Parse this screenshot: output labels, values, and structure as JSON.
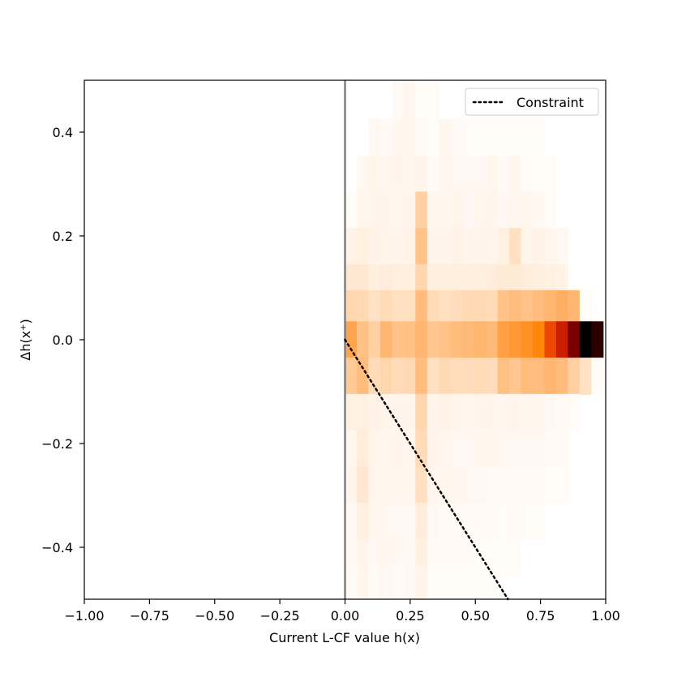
{
  "chart_data": {
    "type": "heatmap",
    "xlabel": "Current L-CF value h(x)",
    "ylabel": "Δh(x⁺)",
    "xlim": [
      -1.0,
      1.0
    ],
    "ylim": [
      -0.5,
      0.5
    ],
    "x_ticks": [
      "−1.00",
      "−0.75",
      "−0.50",
      "−0.25",
      "0.00",
      "0.25",
      "0.50",
      "0.75",
      "1.00"
    ],
    "y_ticks": [
      "−0.4",
      "−0.2",
      "0.0",
      "0.2",
      "0.4"
    ],
    "grid": false,
    "legend": {
      "placement": "top-right",
      "entries": [
        "Constraint"
      ]
    },
    "vertical_line": {
      "x": 0.0,
      "color": "#808080"
    },
    "constraint_line": {
      "name": "Constraint",
      "style": "dotted",
      "color": "#000000",
      "x0": 0.0,
      "y0": 0.0,
      "slope": -0.8
    },
    "colormap": "gist_heat_r",
    "x_bin_width": 0.0455,
    "y_bin_width": 0.071,
    "x_bin_starts": [
      0.0,
      0.045,
      0.09,
      0.135,
      0.18,
      0.225,
      0.27,
      0.315,
      0.36,
      0.405,
      0.45,
      0.495,
      0.54,
      0.585,
      0.63,
      0.675,
      0.72,
      0.765,
      0.81,
      0.855,
      0.9,
      0.945
    ],
    "y_bin_centers": [
      0.46,
      0.39,
      0.32,
      0.25,
      0.18,
      0.11,
      0.06,
      0.0,
      -0.07,
      -0.14,
      -0.21,
      -0.28,
      -0.35,
      -0.42,
      -0.47
    ],
    "z_relative": [
      [
        0.0,
        0.0,
        0.0,
        0.0,
        0.03,
        0.05,
        0.02,
        0.02,
        0.0,
        0.0,
        0.0,
        0.0,
        0.0,
        0.0,
        0.0,
        0.0,
        0.0,
        0.0,
        0.0,
        0.0,
        0.0,
        0.0
      ],
      [
        0.0,
        0.0,
        0.04,
        0.03,
        0.05,
        0.05,
        0.03,
        0.02,
        0.05,
        0.03,
        0.02,
        0.02,
        0.02,
        0.02,
        0.02,
        0.02,
        0.02,
        0.0,
        0.0,
        0.0,
        0.0,
        0.0
      ],
      [
        0.0,
        0.04,
        0.06,
        0.05,
        0.06,
        0.05,
        0.06,
        0.03,
        0.05,
        0.04,
        0.04,
        0.04,
        0.05,
        0.03,
        0.05,
        0.02,
        0.02,
        0.02,
        0.0,
        0.0,
        0.0,
        0.0
      ],
      [
        0.02,
        0.05,
        0.06,
        0.06,
        0.05,
        0.06,
        0.22,
        0.05,
        0.05,
        0.06,
        0.04,
        0.05,
        0.06,
        0.04,
        0.05,
        0.05,
        0.04,
        0.02,
        0.0,
        0.0,
        0.0,
        0.0
      ],
      [
        0.07,
        0.08,
        0.07,
        0.06,
        0.06,
        0.07,
        0.26,
        0.06,
        0.06,
        0.07,
        0.06,
        0.06,
        0.06,
        0.08,
        0.16,
        0.06,
        0.07,
        0.05,
        0.04,
        0.0,
        0.0,
        0.0
      ],
      [
        0.12,
        0.12,
        0.09,
        0.1,
        0.09,
        0.09,
        0.2,
        0.09,
        0.09,
        0.09,
        0.09,
        0.09,
        0.1,
        0.11,
        0.11,
        0.1,
        0.09,
        0.08,
        0.07,
        0.0,
        0.0,
        0.0
      ],
      [
        0.2,
        0.19,
        0.15,
        0.18,
        0.16,
        0.16,
        0.28,
        0.18,
        0.16,
        0.17,
        0.19,
        0.19,
        0.18,
        0.26,
        0.28,
        0.26,
        0.28,
        0.3,
        0.32,
        0.3,
        0.02,
        0.0
      ],
      [
        0.35,
        0.27,
        0.22,
        0.3,
        0.26,
        0.27,
        0.3,
        0.25,
        0.26,
        0.28,
        0.29,
        0.3,
        0.29,
        0.37,
        0.4,
        0.43,
        0.48,
        0.6,
        0.7,
        0.85,
        1.0,
        0.95
      ],
      [
        0.24,
        0.28,
        0.18,
        0.2,
        0.18,
        0.19,
        0.28,
        0.16,
        0.19,
        0.17,
        0.17,
        0.18,
        0.17,
        0.27,
        0.25,
        0.28,
        0.28,
        0.3,
        0.28,
        0.22,
        0.15,
        0.02
      ],
      [
        0.08,
        0.08,
        0.07,
        0.06,
        0.06,
        0.06,
        0.2,
        0.06,
        0.07,
        0.06,
        0.05,
        0.06,
        0.06,
        0.05,
        0.06,
        0.05,
        0.05,
        0.04,
        0.03,
        0.02,
        0.0,
        0.0
      ],
      [
        0.05,
        0.1,
        0.06,
        0.05,
        0.06,
        0.05,
        0.18,
        0.06,
        0.05,
        0.04,
        0.04,
        0.05,
        0.05,
        0.04,
        0.04,
        0.04,
        0.04,
        0.03,
        0.03,
        0.0,
        0.0,
        0.0
      ],
      [
        0.06,
        0.12,
        0.06,
        0.05,
        0.05,
        0.05,
        0.16,
        0.05,
        0.05,
        0.05,
        0.04,
        0.04,
        0.03,
        0.03,
        0.03,
        0.03,
        0.03,
        0.02,
        0.02,
        0.0,
        0.0,
        0.0
      ],
      [
        0.04,
        0.08,
        0.05,
        0.04,
        0.04,
        0.04,
        0.1,
        0.04,
        0.03,
        0.03,
        0.03,
        0.03,
        0.03,
        0.02,
        0.03,
        0.02,
        0.02,
        0.0,
        0.0,
        0.0,
        0.0,
        0.0
      ],
      [
        0.04,
        0.06,
        0.04,
        0.05,
        0.04,
        0.04,
        0.08,
        0.03,
        0.03,
        0.03,
        0.03,
        0.02,
        0.02,
        0.02,
        0.02,
        0.0,
        0.0,
        0.0,
        0.0,
        0.0,
        0.0,
        0.0
      ],
      [
        0.03,
        0.05,
        0.03,
        0.04,
        0.03,
        0.04,
        0.06,
        0.02,
        0.02,
        0.02,
        0.02,
        0.02,
        0.02,
        0.0,
        0.0,
        0.0,
        0.0,
        0.0,
        0.0,
        0.0,
        0.0,
        0.0
      ]
    ]
  }
}
